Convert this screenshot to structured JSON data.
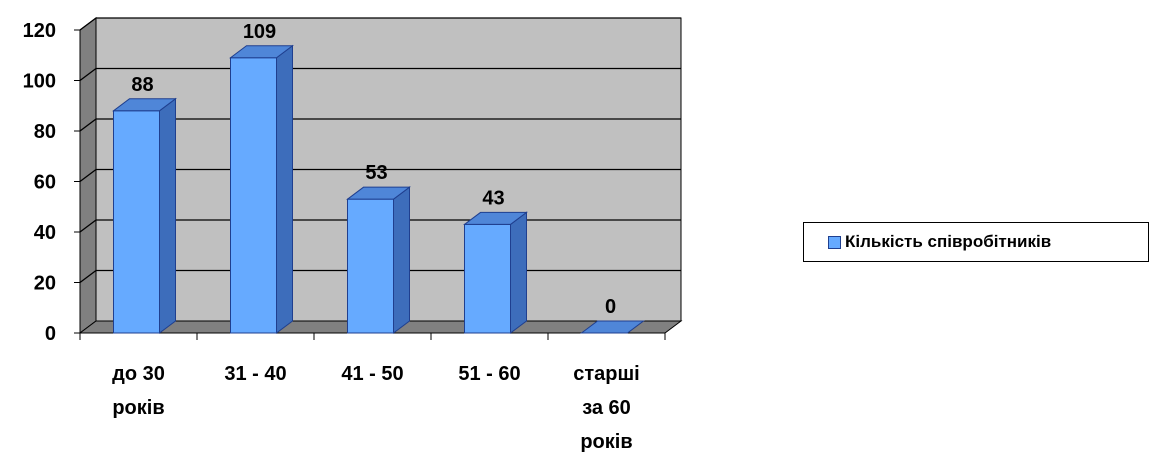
{
  "chart_data": {
    "type": "bar",
    "categories": [
      "до 30 років",
      "31 - 40",
      "41 - 50",
      "51 - 60",
      "старші за 60 років"
    ],
    "category_label_lines": [
      [
        "до 30",
        "років"
      ],
      [
        "31 - 40"
      ],
      [
        "41 - 50"
      ],
      [
        "51 - 60"
      ],
      [
        "старші",
        "за 60",
        "років"
      ]
    ],
    "series": [
      {
        "name": "Кількість співробітників",
        "values": [
          88,
          109,
          53,
          43,
          0
        ]
      }
    ],
    "title": "",
    "xlabel": "",
    "ylabel": "",
    "ylim": [
      0,
      120
    ],
    "yticks": [
      0,
      20,
      40,
      60,
      80,
      100,
      120
    ],
    "grid": true,
    "data_labels": true,
    "style": "3d-column",
    "legend_position": "right",
    "colors": {
      "bar_front": "#66aaff",
      "bar_side": "#3d6dbb",
      "bar_top": "#4f86d8",
      "bar_outline": "#1f3f8f",
      "back_wall": "#c0c0c0",
      "side_wall": "#808080",
      "floor": "#808080"
    }
  },
  "legend": {
    "label": "Кількість співробітників"
  }
}
